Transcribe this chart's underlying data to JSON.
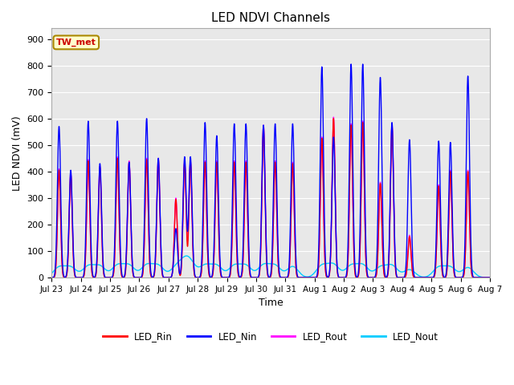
{
  "title": "LED NDVI Channels",
  "xlabel": "Time",
  "ylabel": "LED NDVI (mV)",
  "ylim": [
    0,
    940
  ],
  "yticks": [
    0,
    100,
    200,
    300,
    400,
    500,
    600,
    700,
    800,
    900
  ],
  "legend_labels": [
    "LED_Rin",
    "LED_Nin",
    "LED_Rout",
    "LED_Nout"
  ],
  "legend_colors": [
    "#ff0000",
    "#0000ff",
    "#ff00ff",
    "#00ccff"
  ],
  "annotation_text": "TW_met",
  "annotation_bg": "#ffffcc",
  "annotation_fg": "#cc0000",
  "tick_labels": [
    "Jul 23",
    "Jul 24",
    "Jul 25",
    "Jul 26",
    "Jul 27",
    "Jul 28",
    "Jul 29",
    "Jul 30",
    "Jul 31",
    "Aug 1",
    "Aug 2",
    "Aug 3",
    "Aug 4",
    "Aug 5",
    "Aug 6",
    "Aug 7"
  ],
  "tick_positions": [
    0,
    1,
    2,
    3,
    4,
    5,
    6,
    7,
    8,
    9,
    10,
    11,
    12,
    13,
    14,
    15
  ],
  "spike_centers": [
    0.25,
    0.65,
    1.25,
    1.65,
    2.25,
    2.65,
    3.25,
    3.65,
    4.25,
    4.55,
    4.75,
    5.25,
    5.65,
    6.25,
    6.65,
    7.25,
    7.65,
    8.25,
    9.25,
    9.65,
    10.25,
    10.65,
    11.25,
    11.65,
    12.25,
    13.25,
    13.65,
    14.25
  ],
  "nin_peaks": [
    570,
    405,
    590,
    430,
    590,
    435,
    600,
    450,
    185,
    455,
    455,
    585,
    535,
    580,
    580,
    575,
    580,
    580,
    795,
    530,
    805,
    805,
    755,
    585,
    520,
    515,
    510,
    760
  ],
  "rout_peaks": [
    410,
    395,
    445,
    420,
    455,
    440,
    450,
    450,
    300,
    440,
    440,
    440,
    440,
    440,
    440,
    575,
    440,
    435,
    530,
    605,
    580,
    590,
    360,
    580,
    160,
    350,
    405,
    405
  ],
  "rin_peaks": [
    405,
    390,
    440,
    415,
    450,
    435,
    445,
    445,
    295,
    435,
    435,
    435,
    435,
    435,
    435,
    570,
    435,
    430,
    525,
    600,
    575,
    585,
    355,
    575,
    155,
    345,
    400,
    400
  ],
  "nout_peaks": [
    38,
    38,
    42,
    42,
    45,
    45,
    46,
    44,
    35,
    44,
    44,
    44,
    44,
    44,
    44,
    46,
    44,
    42,
    44,
    48,
    44,
    46,
    38,
    44,
    30,
    38,
    38,
    38
  ]
}
